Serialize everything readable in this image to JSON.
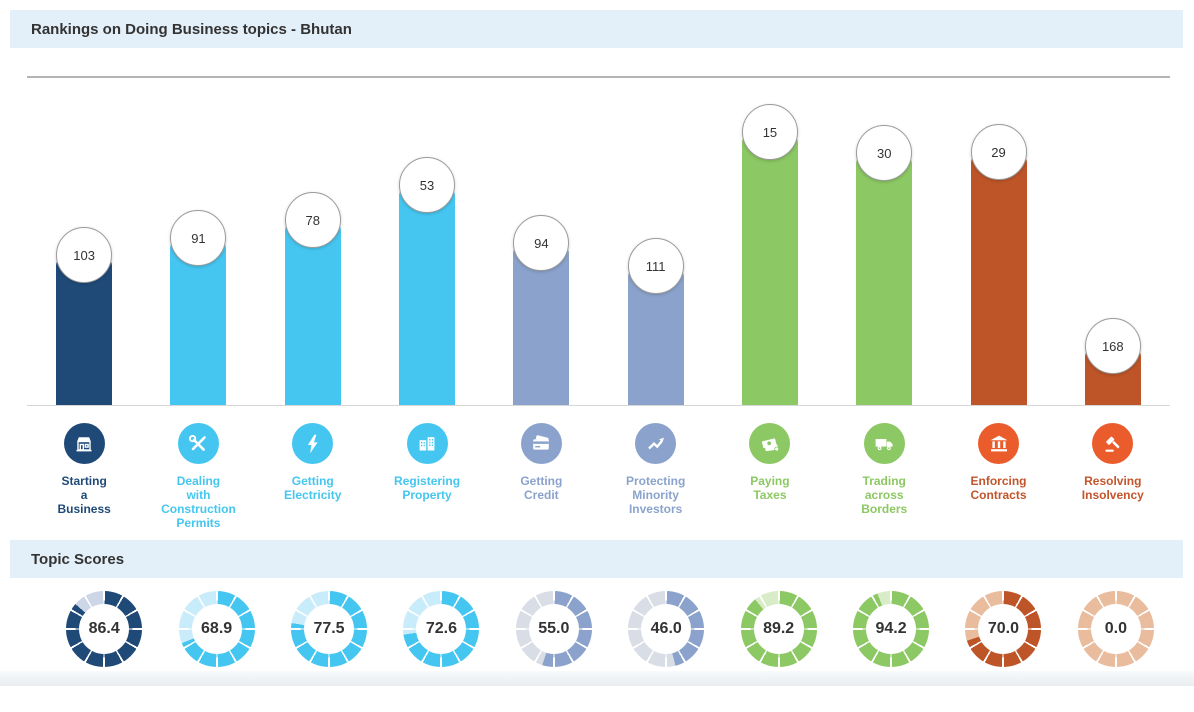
{
  "rankings": {
    "title": "Rankings on Doing Business topics - Bhutan"
  },
  "scores": {
    "title": "Topic Scores"
  },
  "theme": {
    "header_bg": "#e4f0f9",
    "navy": "#1f4a78",
    "cyan": "#45c6f0",
    "gray_blue": "#8ba3cc",
    "green": "#8cc863",
    "rust": "#bd5528",
    "orange": "#eb5c2d"
  },
  "chart_data": {
    "type": "bar",
    "title": "Rankings on Doing Business topics - Bhutan",
    "categories": [
      "Starting a Business",
      "Dealing with Construction Permits",
      "Getting Electricity",
      "Registering Property",
      "Getting Credit",
      "Protecting Minority Investors",
      "Paying Taxes",
      "Trading across Borders",
      "Enforcing Contracts",
      "Resolving Insolvency"
    ],
    "series": [
      {
        "name": "Ranking",
        "values": [
          103,
          91,
          78,
          53,
          94,
          111,
          15,
          30,
          29,
          168
        ]
      },
      {
        "name": "Topic Score",
        "values": [
          86.4,
          68.9,
          77.5,
          72.6,
          55.0,
          46.0,
          89.2,
          94.2,
          70.0,
          0.0
        ]
      }
    ],
    "annotations": "Ranking shown in a white bubble at the top of each bar; better (lower) rank gives a taller bar. Topic scores shown below as 12-segment donut gauges filled clockwise from top (0-100).",
    "legend": "none",
    "grid": "off"
  },
  "topics": [
    {
      "label": "Starting\na\nBusiness",
      "rank": 103,
      "rank_label": "103",
      "score": 86.4,
      "score_label": "86.4",
      "color": "#1f4a78",
      "light": "#cdd6e7",
      "icon_bg": "#1f4a78",
      "label_color": "#1f4a78",
      "icon": "storefront-icon"
    },
    {
      "label": "Dealing\nwith\nConstruction\nPermits",
      "rank": 91,
      "rank_label": "91",
      "score": 68.9,
      "score_label": "68.9",
      "color": "#45c6f0",
      "light": "#c9ecfa",
      "icon_bg": "#45c6f0",
      "label_color": "#45c6f0",
      "icon": "tools-icon"
    },
    {
      "label": "Getting\nElectricity",
      "rank": 78,
      "rank_label": "78",
      "score": 77.5,
      "score_label": "77.5",
      "color": "#45c6f0",
      "light": "#c9ecfa",
      "icon_bg": "#45c6f0",
      "label_color": "#45c6f0",
      "icon": "lightning-icon"
    },
    {
      "label": "Registering\nProperty",
      "rank": 53,
      "rank_label": "53",
      "score": 72.6,
      "score_label": "72.6",
      "color": "#45c6f0",
      "light": "#c9ecfa",
      "icon_bg": "#45c6f0",
      "label_color": "#45c6f0",
      "icon": "buildings-icon"
    },
    {
      "label": "Getting\nCredit",
      "rank": 94,
      "rank_label": "94",
      "score": 55.0,
      "score_label": "55.0",
      "color": "#8ba3cc",
      "light": "#d9dde5",
      "icon_bg": "#8ba3cc",
      "label_color": "#8ba3cc",
      "icon": "credit-card-icon"
    },
    {
      "label": "Protecting\nMinority\nInvestors",
      "rank": 111,
      "rank_label": "111",
      "score": 46.0,
      "score_label": "46.0",
      "color": "#8ba3cc",
      "light": "#d9dde5",
      "icon_bg": "#8ba3cc",
      "label_color": "#8ba3cc",
      "icon": "growth-chart-icon"
    },
    {
      "label": "Paying\nTaxes",
      "rank": 15,
      "rank_label": "15",
      "score": 89.2,
      "score_label": "89.2",
      "color": "#8cc863",
      "light": "#d8ecc8",
      "icon_bg": "#8cc863",
      "label_color": "#8cc863",
      "icon": "money-icon"
    },
    {
      "label": "Trading\nacross\nBorders",
      "rank": 30,
      "rank_label": "30",
      "score": 94.2,
      "score_label": "94.2",
      "color": "#8cc863",
      "light": "#d8ecc8",
      "icon_bg": "#8cc863",
      "label_color": "#8cc863",
      "icon": "truck-icon"
    },
    {
      "label": "Enforcing\nContracts",
      "rank": 29,
      "rank_label": "29",
      "score": 70.0,
      "score_label": "70.0",
      "color": "#bd5528",
      "light": "#eabc9e",
      "icon_bg": "#eb5c2d",
      "label_color": "#c2552c",
      "icon": "bank-icon"
    },
    {
      "label": "Resolving\nInsolvency",
      "rank": 168,
      "rank_label": "168",
      "score": 0.0,
      "score_label": "0.0",
      "color": "#bd5528",
      "light": "#eabc9e",
      "icon_bg": "#eb5c2d",
      "label_color": "#c2552c",
      "icon": "gavel-icon"
    }
  ]
}
